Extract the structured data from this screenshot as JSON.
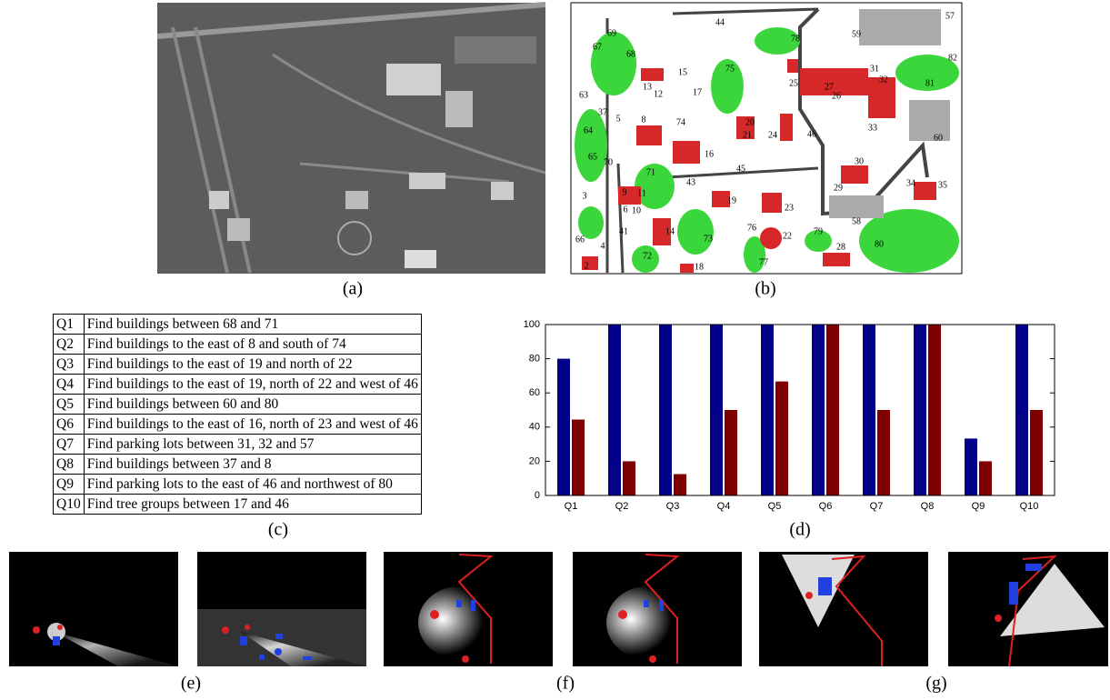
{
  "panels": {
    "a": "(a)",
    "b": "(b)",
    "c": "(c)",
    "d": "(d)",
    "e": "(e)",
    "f": "(f)",
    "g": "(g)"
  },
  "map_labels": [
    "57",
    "44",
    "59",
    "78",
    "69",
    "67",
    "68",
    "13",
    "15",
    "12",
    "25",
    "27",
    "31",
    "82",
    "75",
    "32",
    "26",
    "81",
    "63",
    "17",
    "37",
    "5",
    "8",
    "74",
    "20",
    "21",
    "24",
    "46",
    "33",
    "64",
    "60",
    "16",
    "70",
    "65",
    "71",
    "45",
    "30",
    "43",
    "29",
    "34",
    "35",
    "3",
    "9",
    "11",
    "6",
    "10",
    "19",
    "23",
    "58",
    "41",
    "14",
    "73",
    "76",
    "22",
    "79",
    "66",
    "4",
    "80",
    "28",
    "72",
    "77",
    "2",
    "18"
  ],
  "table": {
    "rows": [
      [
        "Q1",
        "Find buildings between 68 and 71"
      ],
      [
        "Q2",
        "Find buildings to the east of 8 and south of 74"
      ],
      [
        "Q3",
        "Find buildings to the east of 19 and north of 22"
      ],
      [
        "Q4",
        "Find buildings to the east of 19, north of 22 and west of 46"
      ],
      [
        "Q5",
        "Find buildings between 60 and 80"
      ],
      [
        "Q6",
        "Find buildings to the east of 16, north of 23 and west of 46"
      ],
      [
        "Q7",
        "Find parking lots between 31, 32 and 57"
      ],
      [
        "Q8",
        "Find buildings between 37 and 8"
      ],
      [
        "Q9",
        "Find parking lots to the east of 46 and northwest of 80"
      ],
      [
        "Q10",
        "Find tree groups between 17 and 46"
      ]
    ]
  },
  "chart_data": {
    "type": "bar",
    "categories": [
      "Q1",
      "Q2",
      "Q3",
      "Q4",
      "Q5",
      "Q6",
      "Q7",
      "Q8",
      "Q9",
      "Q10"
    ],
    "series": [
      {
        "color": "#00008b",
        "values": [
          80,
          100,
          100,
          100,
          100,
          100,
          100,
          100,
          33.3,
          100
        ]
      },
      {
        "color": "#7f0000",
        "values": [
          44.4,
          20,
          12.5,
          50,
          66.7,
          100,
          50,
          100,
          20,
          50
        ]
      }
    ],
    "ylim": [
      0,
      100
    ],
    "yticks": [
      0,
      20,
      40,
      60,
      80,
      100
    ]
  }
}
